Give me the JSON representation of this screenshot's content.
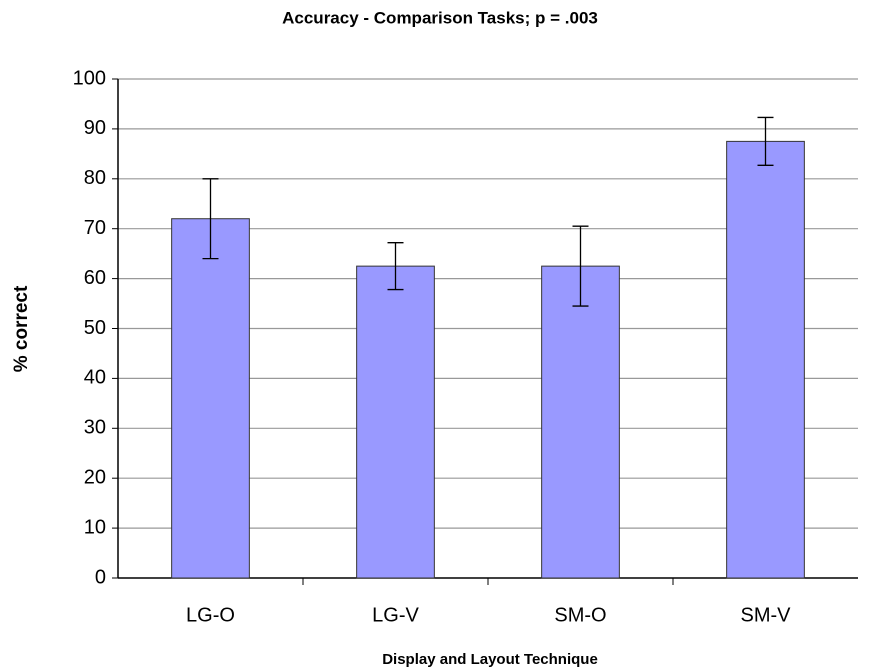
{
  "chart_data": {
    "type": "bar",
    "title": "Accuracy - Comparison Tasks; p = .003",
    "x_label": "Display and Layout Technique",
    "y_label": "% correct",
    "categories": [
      "LG-O",
      "LG-V",
      "SM-O",
      "SM-V"
    ],
    "values": [
      72,
      62.5,
      62.5,
      87.5
    ],
    "errors": [
      8,
      4.7,
      8,
      4.8
    ],
    "color": "#9999ff",
    "ylim": [
      0,
      100
    ],
    "yticks": [
      0,
      10,
      20,
      30,
      40,
      50,
      60,
      70,
      80,
      90,
      100
    ],
    "grid": true
  }
}
